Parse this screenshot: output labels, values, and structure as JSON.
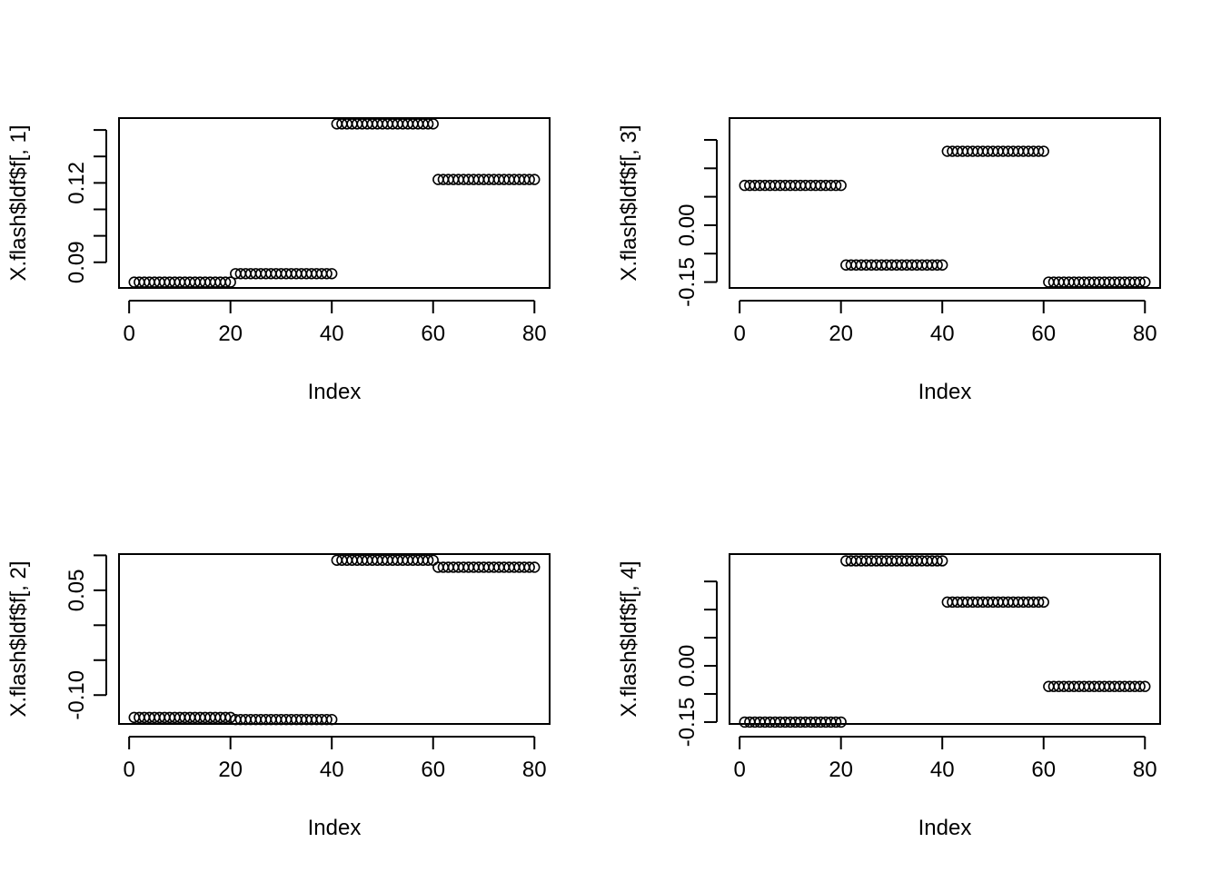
{
  "chart_data": [
    {
      "type": "scatter",
      "xlabel": "Index",
      "ylabel": "X.flash$ldf$f[, 1]",
      "xlim": [
        -2,
        83
      ],
      "ylim": [
        0.0803,
        0.1445
      ],
      "x_ticks": [
        0,
        20,
        40,
        60,
        80
      ],
      "y_ticks": [
        0.08,
        0.09,
        0.1,
        0.11,
        0.12,
        0.13,
        0.14
      ],
      "y_tick_labels": [
        {
          "value": 0.09,
          "label": "0.09"
        },
        {
          "value": 0.12,
          "label": "0.12"
        }
      ],
      "series": [
        {
          "name": "points",
          "x_from": 1,
          "x_to": 80,
          "segments": [
            {
              "from": 1,
              "to": 20,
              "y": 0.0825
            },
            {
              "from": 21,
              "to": 40,
              "y": 0.0857
            },
            {
              "from": 41,
              "to": 60,
              "y": 0.1423
            },
            {
              "from": 61,
              "to": 80,
              "y": 0.1213
            }
          ]
        }
      ]
    },
    {
      "type": "scatter",
      "xlabel": "Index",
      "ylabel": "X.flash$ldf$f[, 3]",
      "xlim": [
        -2,
        83
      ],
      "ylim": [
        -0.1655,
        0.2825
      ],
      "x_ticks": [
        0,
        20,
        40,
        60,
        80
      ],
      "y_ticks": [
        -0.15,
        -0.075,
        0.0,
        0.075,
        0.15,
        0.225
      ],
      "y_tick_labels": [
        {
          "value": -0.15,
          "label": "-0.15"
        },
        {
          "value": 0.0,
          "label": "0.00"
        }
      ],
      "series": [
        {
          "name": "points",
          "x_from": 1,
          "x_to": 80,
          "segments": [
            {
              "from": 1,
              "to": 20,
              "y": 0.105
            },
            {
              "from": 21,
              "to": 40,
              "y": -0.105
            },
            {
              "from": 41,
              "to": 60,
              "y": 0.195
            },
            {
              "from": 61,
              "to": 80,
              "y": -0.15
            }
          ]
        }
      ]
    },
    {
      "type": "scatter",
      "xlabel": "Index",
      "ylabel": "X.flash$ldf$f[, 2]",
      "xlim": [
        -2,
        83
      ],
      "ylim": [
        -0.1413,
        0.1018
      ],
      "x_ticks": [
        0,
        20,
        40,
        60,
        80
      ],
      "y_ticks": [
        -0.1,
        -0.05,
        0.0,
        0.05,
        0.1
      ],
      "y_tick_labels": [
        {
          "value": -0.1,
          "label": "-0.10"
        },
        {
          "value": 0.05,
          "label": "0.05"
        }
      ],
      "series": [
        {
          "name": "points",
          "x_from": 1,
          "x_to": 80,
          "segments": [
            {
              "from": 1,
              "to": 20,
              "y": -0.132
            },
            {
              "from": 21,
              "to": 40,
              "y": -0.135
            },
            {
              "from": 41,
              "to": 60,
              "y": 0.093
            },
            {
              "from": 61,
              "to": 80,
              "y": 0.083
            }
          ]
        }
      ]
    },
    {
      "type": "scatter",
      "xlabel": "Index",
      "ylabel": "X.flash$ldf$f[, 4]",
      "xlim": [
        -2,
        83
      ],
      "ylim": [
        -0.155,
        0.298
      ],
      "x_ticks": [
        0,
        20,
        40,
        60,
        80
      ],
      "y_ticks": [
        -0.15,
        -0.075,
        0.0,
        0.075,
        0.15,
        0.225
      ],
      "y_tick_labels": [
        {
          "value": -0.15,
          "label": "-0.15"
        },
        {
          "value": 0.0,
          "label": "0.00"
        }
      ],
      "series": [
        {
          "name": "points",
          "x_from": 1,
          "x_to": 80,
          "segments": [
            {
              "from": 1,
              "to": 20,
              "y": -0.15
            },
            {
              "from": 21,
              "to": 40,
              "y": 0.28
            },
            {
              "from": 41,
              "to": 60,
              "y": 0.17
            },
            {
              "from": 61,
              "to": 80,
              "y": -0.055
            }
          ]
        }
      ]
    }
  ]
}
